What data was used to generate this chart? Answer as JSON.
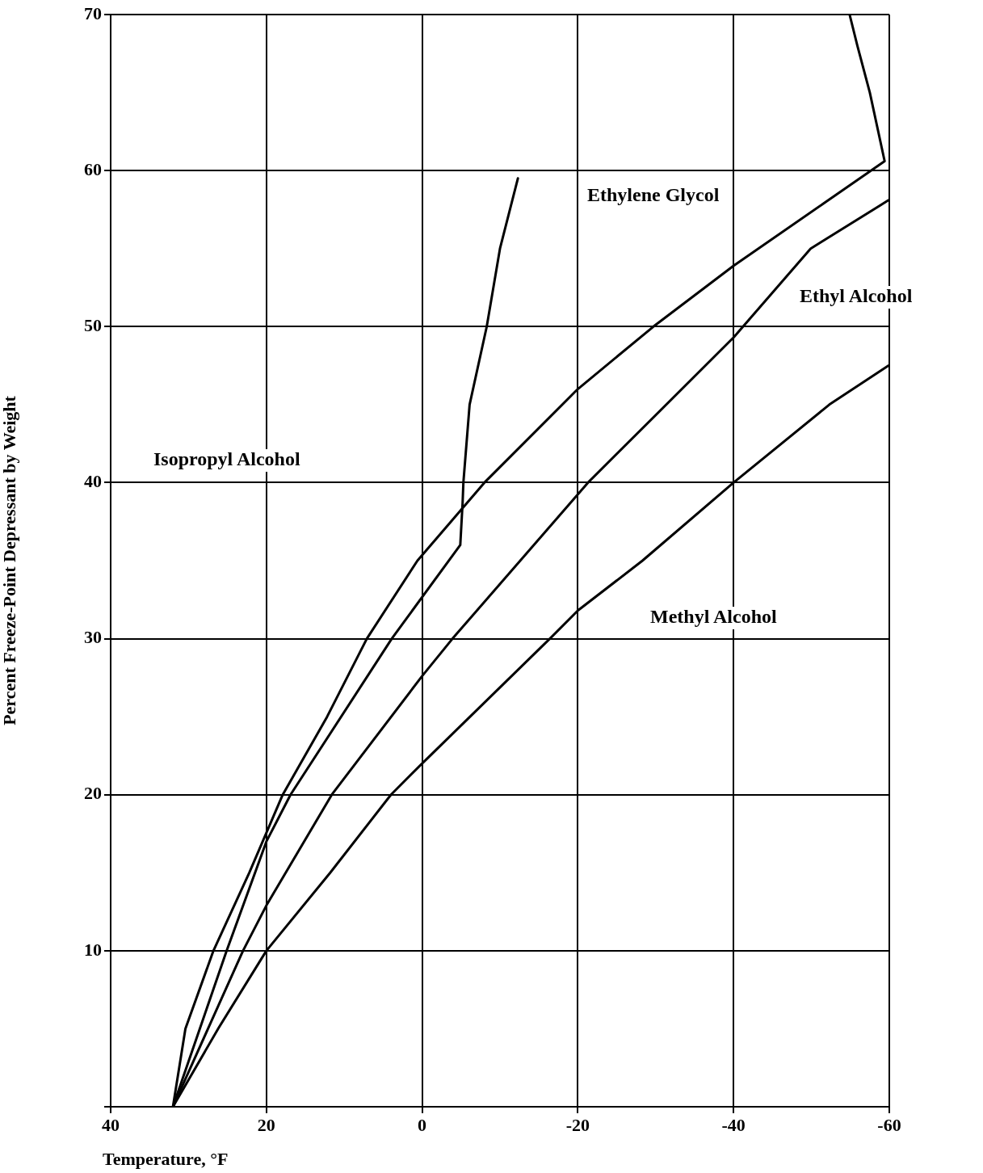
{
  "chart_data": {
    "type": "line",
    "xlabel": "Temperature, °F",
    "ylabel": "Percent Freeze-Point Depressant by Weight",
    "xlim": [
      40,
      -60
    ],
    "xticks": [
      40,
      20,
      0,
      -20,
      -40,
      -60
    ],
    "ylim": [
      0,
      70
    ],
    "yticks": [
      {
        "value": 0,
        "label": null
      },
      10,
      20,
      30,
      40,
      50,
      60,
      70
    ],
    "grid": true,
    "legend": false,
    "marker": "none",
    "line_style": "solid",
    "series": [
      {
        "color": "#000000",
        "x": [
          32,
          30.4,
          26.8,
          22.2,
          17.9,
          12.2,
          7.1,
          0.6,
          -8,
          -20,
          -29.7,
          -40,
          -59.4,
          -57.5,
          -55.9,
          -54.9
        ],
        "values": [
          0,
          5,
          10,
          15,
          20,
          25,
          30,
          35,
          40,
          46,
          50,
          53.9,
          60.6,
          65,
          68,
          70
        ]
      },
      {
        "color": "#000000",
        "x": [
          32,
          25.1,
          20,
          16.9,
          3.9,
          -4.9,
          -5.2,
          -5.3,
          -6.1,
          -8.3,
          -10,
          -12.3
        ],
        "values": [
          0,
          10,
          17,
          20,
          30,
          36,
          38.7,
          40,
          45,
          50,
          55,
          59.5
        ]
      },
      {
        "color": "#000000",
        "x": [
          32,
          23,
          20,
          11.6,
          0,
          -3.9,
          -21.3,
          -40,
          -49.9,
          -59.9
        ],
        "values": [
          0,
          10,
          12.9,
          20,
          27.6,
          30,
          40,
          49.3,
          55,
          58.1
        ]
      },
      {
        "color": "#000000",
        "x": [
          32,
          26.2,
          20,
          11.8,
          4,
          0,
          -16.4,
          -20,
          -28.3,
          -40,
          -52.3,
          -59.9
        ],
        "values": [
          0,
          5,
          10,
          15,
          20,
          22,
          30,
          31.8,
          35,
          40,
          45,
          47.5
        ]
      }
    ],
    "annotations": [
      "Isopropyl Alcohol",
      "Ethylene Glycol",
      "Ethyl Alcohol",
      "Methyl Alcohol"
    ]
  }
}
